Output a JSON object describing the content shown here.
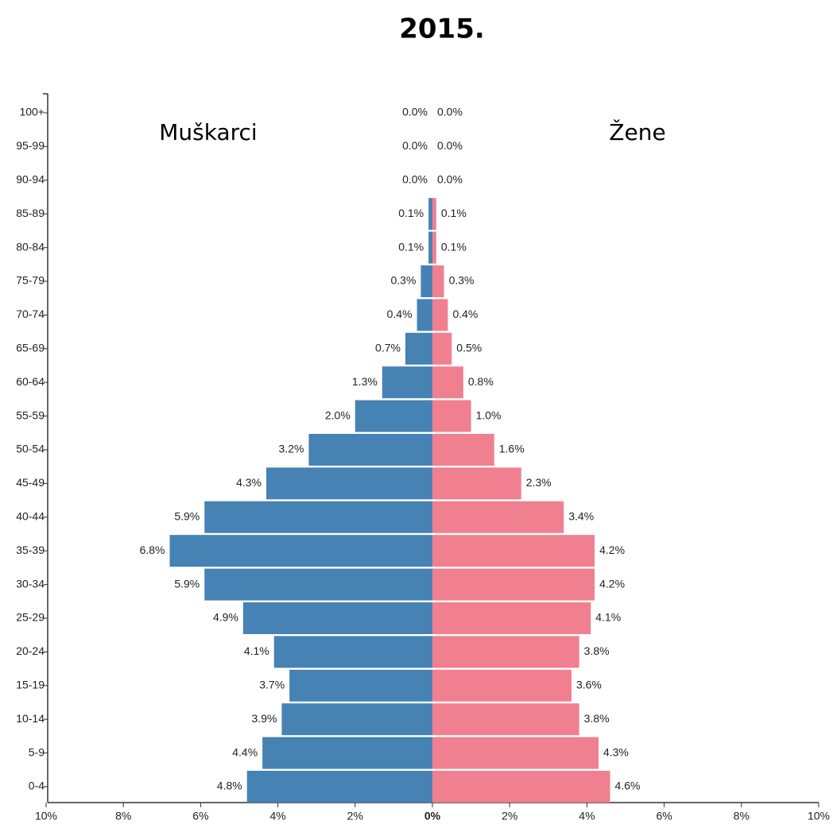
{
  "chart_data": {
    "type": "pyramid",
    "title": "2015.",
    "categories": [
      "0-4",
      "5-9",
      "10-14",
      "15-19",
      "20-24",
      "25-29",
      "30-34",
      "35-39",
      "40-44",
      "45-49",
      "50-54",
      "55-59",
      "60-64",
      "65-69",
      "70-74",
      "75-79",
      "80-84",
      "85-89",
      "90-94",
      "95-99",
      "100+"
    ],
    "series": [
      {
        "name": "Muškarci",
        "color": "#4682b4",
        "side": "left",
        "values": [
          4.8,
          4.4,
          3.9,
          3.7,
          4.1,
          4.9,
          5.9,
          6.8,
          5.9,
          4.3,
          3.2,
          2.0,
          1.3,
          0.7,
          0.4,
          0.3,
          0.1,
          0.1,
          0.0,
          0.0,
          0.0
        ],
        "value_labels": [
          "4.8%",
          "4.4%",
          "3.9%",
          "3.7%",
          "4.1%",
          "4.9%",
          "5.9%",
          "6.8%",
          "5.9%",
          "4.3%",
          "3.2%",
          "2.0%",
          "1.3%",
          "0.7%",
          "0.4%",
          "0.3%",
          "0.1%",
          "0.1%",
          "0.0%",
          "0.0%",
          "0.0%"
        ]
      },
      {
        "name": "Žene",
        "color": "#f08090",
        "side": "right",
        "values": [
          4.6,
          4.3,
          3.8,
          3.6,
          3.8,
          4.1,
          4.2,
          4.2,
          3.4,
          2.3,
          1.6,
          1.0,
          0.8,
          0.5,
          0.4,
          0.3,
          0.1,
          0.1,
          0.0,
          0.0,
          0.0
        ],
        "value_labels": [
          "4.6%",
          "4.3%",
          "3.8%",
          "3.6%",
          "3.8%",
          "4.1%",
          "4.2%",
          "4.2%",
          "3.4%",
          "2.3%",
          "1.6%",
          "1.0%",
          "0.8%",
          "0.5%",
          "0.4%",
          "0.3%",
          "0.1%",
          "0.1%",
          "0.0%",
          "0.0%",
          "0.0%"
        ]
      }
    ],
    "xlim": [
      0,
      10
    ],
    "xticks": [
      {
        "value": 0,
        "label": "0%"
      },
      {
        "value": 2,
        "label": "2%"
      },
      {
        "value": 4,
        "label": "4%"
      },
      {
        "value": 6,
        "label": "6%"
      },
      {
        "value": 8,
        "label": "8%"
      },
      {
        "value": 10,
        "label": "10%"
      }
    ]
  }
}
